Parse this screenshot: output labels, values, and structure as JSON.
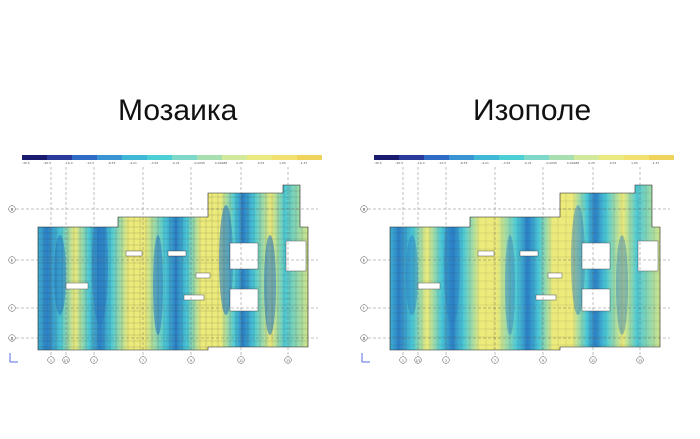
{
  "slide": {
    "left_title": "Мозаика",
    "right_title": "Изополе"
  },
  "colors": {
    "legend": [
      "#1a1a6e",
      "#2a3a9a",
      "#2e6bc4",
      "#3a94d4",
      "#3fb8d8",
      "#4ccfd4",
      "#7dd8c8",
      "#a8dfb0",
      "#d2e89a",
      "#eaea80",
      "#f2e070",
      "#f0d35a"
    ],
    "field_yellow": "#ecea7a",
    "field_cyan": "#4cc9d6",
    "field_blue": "#2b7fc6",
    "axis_line": "#666666"
  },
  "left_panel": {
    "legend_ticks": [
      "-30.5",
      "-20.5",
      "-16.4",
      "-12.5",
      "-8.53",
      "-4.21",
      "-3.52",
      "-0.21",
      "-0.0045",
      "0.00488",
      "0.25",
      "0.53",
      "1.05",
      "2.37"
    ],
    "axis_rows": [
      "В",
      "Е",
      "Г",
      "Д"
    ],
    "axis_columns": [
      "1",
      "1/1",
      "3",
      "7",
      "9",
      "11",
      "13"
    ]
  },
  "right_panel": {
    "legend_ticks": [
      "-30.5",
      "-20.5",
      "-16.4",
      "-12.5",
      "-8.53",
      "-4.21",
      "-3.52",
      "-0.21",
      "-0.0045",
      "0.00488",
      "0.25",
      "0.53",
      "1.05",
      "2.37"
    ],
    "axis_rows": [
      "В",
      "Е",
      "Г",
      "Д"
    ],
    "axis_columns": [
      "1",
      "1/1",
      "3",
      "7",
      "9",
      "11",
      "13"
    ]
  }
}
